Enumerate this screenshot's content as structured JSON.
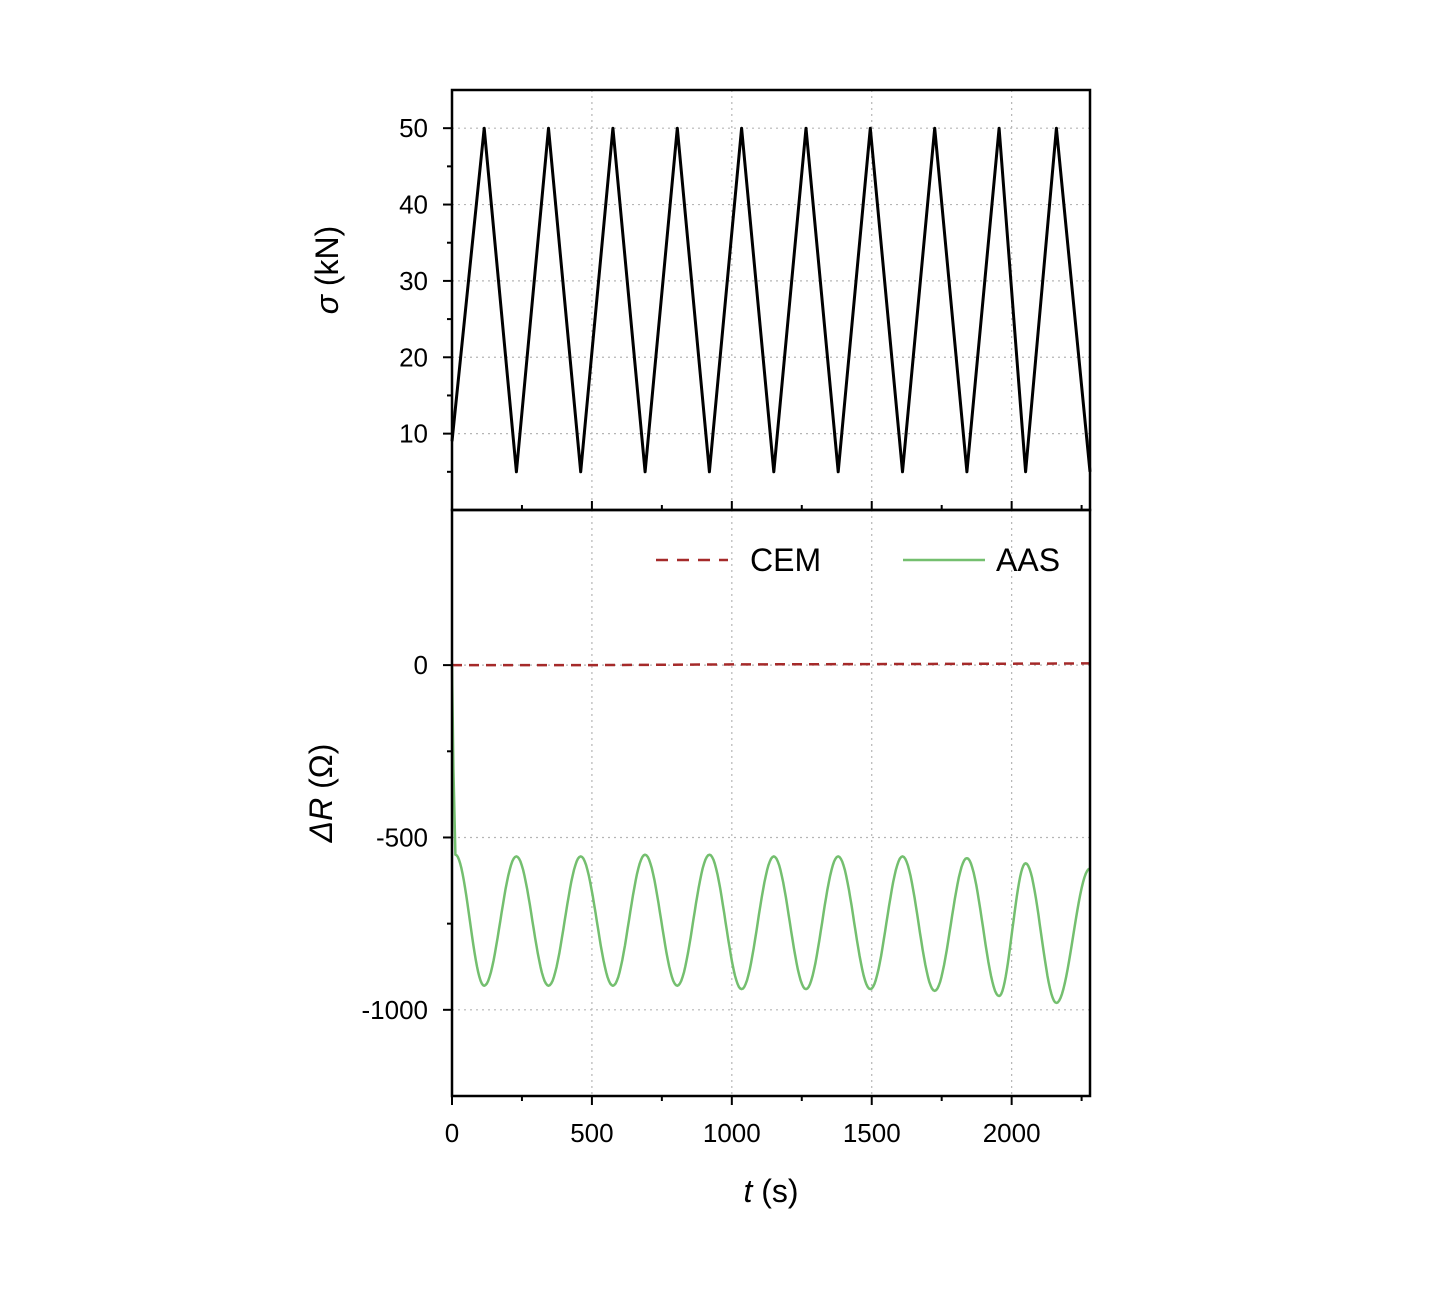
{
  "chart_data": [
    {
      "type": "line",
      "panel": "top",
      "ylabel_symbol": "σ",
      "ylabel_unit": " (kN)",
      "xlim": [
        0,
        2280
      ],
      "ylim": [
        0,
        55
      ],
      "yticks": [
        10,
        20,
        30,
        40,
        50
      ],
      "grid": true,
      "series": [
        {
          "color": "#000000",
          "style": "solid",
          "x": [
            0,
            115,
            230,
            345,
            460,
            575,
            690,
            805,
            920,
            1035,
            1150,
            1265,
            1380,
            1495,
            1610,
            1725,
            1840,
            1955,
            2050,
            2160,
            2280
          ],
          "y": [
            9,
            50,
            5,
            50,
            5,
            50,
            5,
            50,
            5,
            50,
            5,
            50,
            5,
            50,
            5,
            50,
            5,
            50,
            5,
            50,
            5
          ]
        }
      ]
    },
    {
      "type": "line",
      "panel": "bottom",
      "ylabel_symbol": "ΔR",
      "ylabel_unit": " (Ω)",
      "xlabel_symbol": "t",
      "xlabel_unit": " (s)",
      "xlim": [
        0,
        2280
      ],
      "ylim": [
        -1250,
        450
      ],
      "xticks": [
        0,
        500,
        1000,
        1500,
        2000
      ],
      "yticks": [
        -1000,
        -500,
        0
      ],
      "ytick_labels": [
        "-1000",
        "-500",
        "0"
      ],
      "grid": true,
      "legend": "top-right",
      "series": [
        {
          "name": "CEM",
          "color": "#a52a2a",
          "style": "dashed",
          "x": [
            0,
            500,
            1000,
            1500,
            2000,
            2280
          ],
          "y": [
            0,
            0,
            2,
            3,
            4,
            5
          ]
        },
        {
          "name": "AAS",
          "color": "#74bf6f",
          "style": "solid",
          "x": [
            0,
            5,
            12,
            115,
            230,
            345,
            460,
            575,
            690,
            805,
            920,
            1035,
            1150,
            1265,
            1380,
            1495,
            1610,
            1725,
            1840,
            1955,
            2050,
            2160,
            2280
          ],
          "y": [
            0,
            -300,
            -550,
            -930,
            -555,
            -930,
            -555,
            -930,
            -550,
            -930,
            -550,
            -940,
            -555,
            -940,
            -555,
            -940,
            -555,
            -945,
            -560,
            -960,
            -575,
            -980,
            -590
          ]
        }
      ]
    }
  ]
}
